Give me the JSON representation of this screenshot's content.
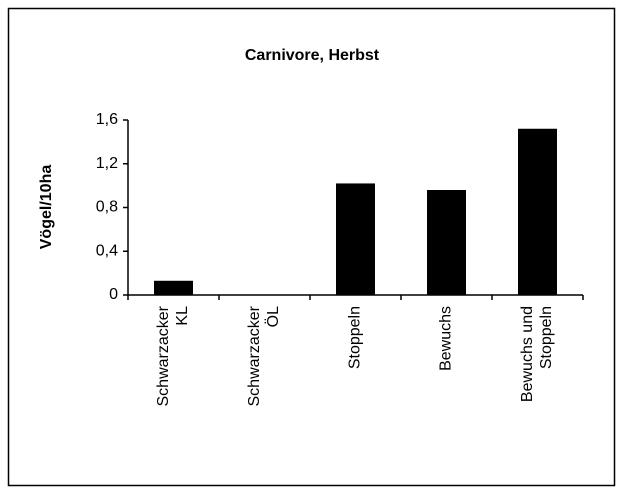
{
  "chart_data": {
    "type": "bar",
    "title": "Carnivore, Herbst",
    "y_label": "Vögel/10ha",
    "categories": [
      [
        "Schwarzacker",
        "KL"
      ],
      [
        "Schwarzacker",
        "ÖL"
      ],
      [
        "Stoppeln"
      ],
      [
        "Bewuchs"
      ],
      [
        "Bewuchs und",
        "Stoppeln"
      ]
    ],
    "values": [
      0.13,
      0,
      1.02,
      0.96,
      1.52
    ],
    "color": "#000000",
    "ylim": [
      0,
      1.6
    ],
    "yticks": [
      0,
      {
        "value": 0.4,
        "label": "0,4"
      },
      {
        "value": 0.8,
        "label": "0,8"
      },
      {
        "value": 1.2,
        "label": "1,2"
      },
      {
        "value": 1.6,
        "label": "1,6"
      }
    ],
    "grid": false
  }
}
